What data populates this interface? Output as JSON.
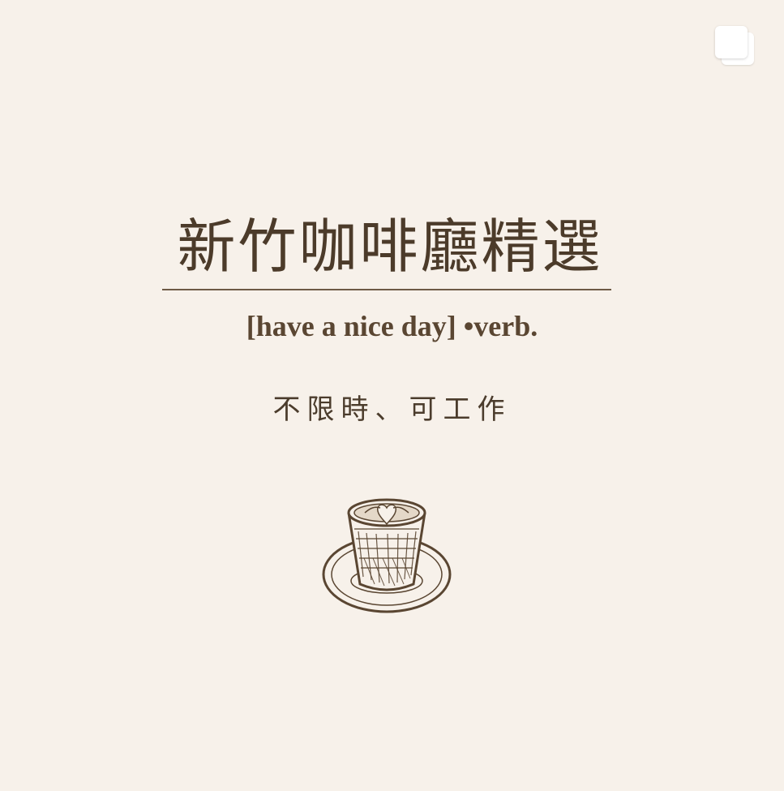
{
  "header": {
    "title": "新竹咖啡廳精選"
  },
  "definition": {
    "label": "[have a nice day] •verb."
  },
  "tagline": {
    "text": "不限時、可工作"
  },
  "icons": {
    "multiple_images_indicator": "multiple-images-icon",
    "illustration": "coffee-cup-icon"
  },
  "colors": {
    "background": "#f7f1ea",
    "text": "#4c3b2a",
    "rule": "#6e5a45",
    "illustration": "#5a4632"
  }
}
